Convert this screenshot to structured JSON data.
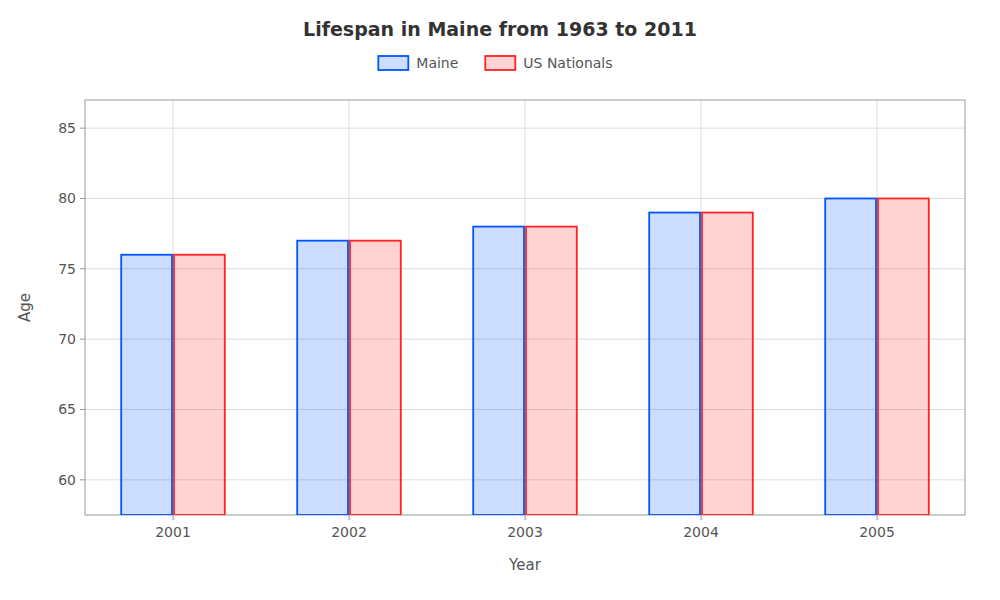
{
  "chart_data": {
    "type": "bar",
    "title": "Lifespan in Maine from 1963 to 2011",
    "x_label": "Year",
    "y_label": "Age",
    "categories": [
      "2001",
      "2002",
      "2003",
      "2004",
      "2005"
    ],
    "series": [
      {
        "name": "Maine",
        "color": "#0055ff",
        "values": [
          76,
          77,
          78,
          79,
          80
        ]
      },
      {
        "name": "US Nationals",
        "color": "#ff2222",
        "values": [
          76,
          77,
          78,
          79,
          80
        ]
      }
    ],
    "ylim": [
      57.5,
      87
    ],
    "yticks": [
      60,
      65,
      70,
      75,
      80,
      85
    ],
    "grid": true,
    "legend": "top"
  }
}
